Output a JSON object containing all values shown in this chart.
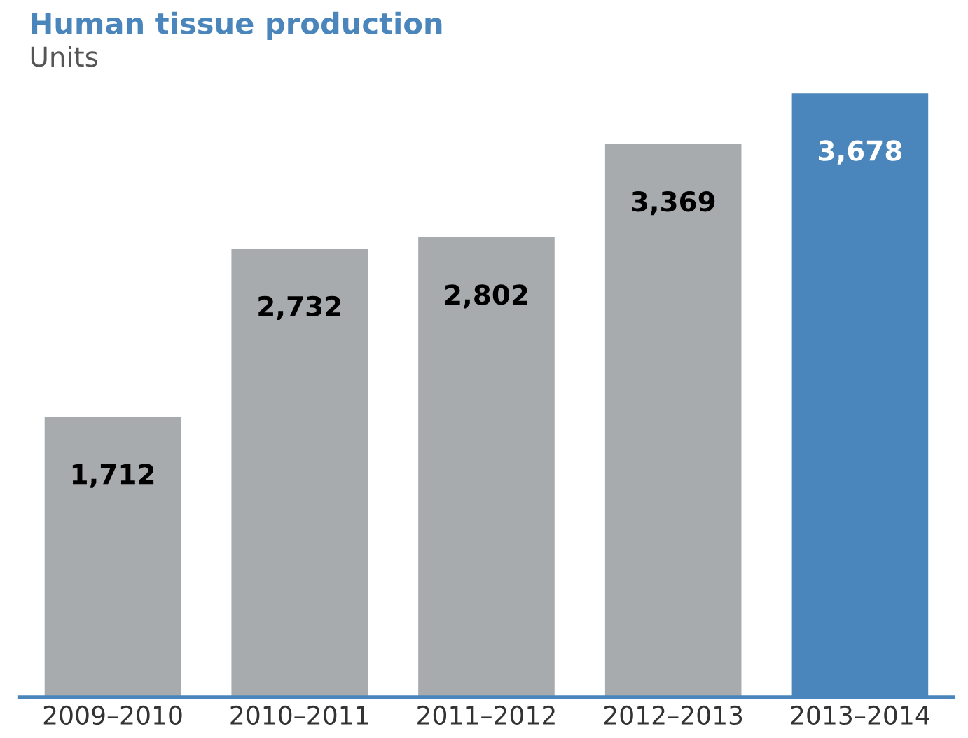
{
  "chart_data": {
    "type": "bar",
    "title": "Human tissue production",
    "subtitle": "Units",
    "categories": [
      "2009–2010",
      "2010–2011",
      "2011–2012",
      "2012–2013",
      "2013–2014"
    ],
    "values": [
      1712,
      2732,
      2802,
      3369,
      3678
    ],
    "colors": [
      "#a7abad",
      "#a7abad",
      "#a7abad",
      "#a7abad",
      "#4a86bb"
    ],
    "value_labels": [
      "1,712",
      "2,732",
      "2,802",
      "3,369",
      "3,678"
    ],
    "grid": false,
    "legend": false
  }
}
